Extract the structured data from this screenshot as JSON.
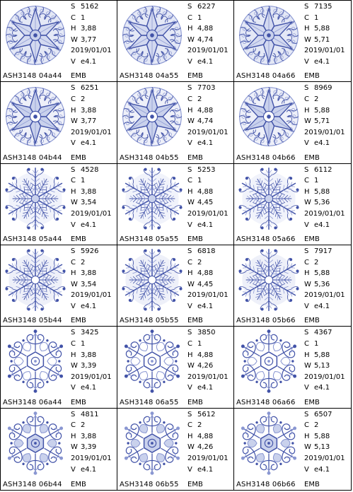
{
  "labels": {
    "stitches": "S",
    "colors": "C",
    "height": "H",
    "width": "W",
    "version": "V"
  },
  "colors": {
    "thread_light": "#c9d1ec",
    "thread_mid": "#8a97d2",
    "thread_dark": "#4253a8",
    "grid": "#000000"
  },
  "designs": [
    {
      "file": "ASH3148  04a44",
      "stitches": "5162",
      "colors": "1",
      "height": "3,88",
      "width": "3,77",
      "date": "2019/01/01",
      "version": "e4.1",
      "format": "EMB",
      "style": "star-filigree"
    },
    {
      "file": "ASH3148  04a55",
      "stitches": "6227",
      "colors": "1",
      "height": "4,88",
      "width": "4,74",
      "date": "2019/01/01",
      "version": "e4.1",
      "format": "EMB",
      "style": "star-filigree"
    },
    {
      "file": "ASH3148  04a66",
      "stitches": "7135",
      "colors": "1",
      "height": "5,88",
      "width": "5,71",
      "date": "2019/01/01",
      "version": "e4.1",
      "format": "EMB",
      "style": "star-filigree"
    },
    {
      "file": "ASH3148  04b44",
      "stitches": "6251",
      "colors": "2",
      "height": "3,88",
      "width": "3,77",
      "date": "2019/01/01",
      "version": "e4.1",
      "format": "EMB",
      "style": "star-filigree-two"
    },
    {
      "file": "ASH3148  04b55",
      "stitches": "7703",
      "colors": "2",
      "height": "4,88",
      "width": "4,74",
      "date": "2019/01/01",
      "version": "e4.1",
      "format": "EMB",
      "style": "star-filigree-two"
    },
    {
      "file": "ASH3148  04b66",
      "stitches": "8969",
      "colors": "2",
      "height": "5,88",
      "width": "5,71",
      "date": "2019/01/01",
      "version": "e4.1",
      "format": "EMB",
      "style": "star-filigree-two"
    },
    {
      "file": "ASH3148  05a44",
      "stitches": "4528",
      "colors": "1",
      "height": "3,88",
      "width": "3,54",
      "date": "2019/01/01",
      "version": "e4.1",
      "format": "EMB",
      "style": "feather-flake"
    },
    {
      "file": "ASH3148  05a55",
      "stitches": "5253",
      "colors": "1",
      "height": "4,88",
      "width": "4,45",
      "date": "2019/01/01",
      "version": "e4.1",
      "format": "EMB",
      "style": "feather-flake"
    },
    {
      "file": "ASH3148  05a66",
      "stitches": "6112",
      "colors": "1",
      "height": "5,88",
      "width": "5,36",
      "date": "2019/01/01",
      "version": "e4.1",
      "format": "EMB",
      "style": "feather-flake"
    },
    {
      "file": "ASH3148  05b44",
      "stitches": "5926",
      "colors": "2",
      "height": "3,88",
      "width": "3,54",
      "date": "2019/01/01",
      "version": "e4.1",
      "format": "EMB",
      "style": "feather-flake-two"
    },
    {
      "file": "ASH3148  05b55",
      "stitches": "6818",
      "colors": "2",
      "height": "4,88",
      "width": "4,45",
      "date": "2019/01/01",
      "version": "e4.1",
      "format": "EMB",
      "style": "feather-flake-two"
    },
    {
      "file": "ASH3148  05b66",
      "stitches": "7917",
      "colors": "2",
      "height": "5,88",
      "width": "5,36",
      "date": "2019/01/01",
      "version": "e4.1",
      "format": "EMB",
      "style": "feather-flake-two"
    },
    {
      "file": "ASH3148  06a44",
      "stitches": "3425",
      "colors": "1",
      "height": "3,88",
      "width": "3,39",
      "date": "2019/01/01",
      "version": "e4.1",
      "format": "EMB",
      "style": "lace-hexagon"
    },
    {
      "file": "ASH3148  06a55",
      "stitches": "3850",
      "colors": "1",
      "height": "4,88",
      "width": "4,26",
      "date": "2019/01/01",
      "version": "e4.1",
      "format": "EMB",
      "style": "lace-hexagon"
    },
    {
      "file": "ASH3148  06a66",
      "stitches": "4367",
      "colors": "1",
      "height": "5,88",
      "width": "5,13",
      "date": "2019/01/01",
      "version": "e4.1",
      "format": "EMB",
      "style": "lace-hexagon"
    },
    {
      "file": "ASH3148  06b44",
      "stitches": "4811",
      "colors": "2",
      "height": "3,88",
      "width": "3,39",
      "date": "2019/01/01",
      "version": "e4.1",
      "format": "EMB",
      "style": "lace-hexagon-two"
    },
    {
      "file": "ASH3148  06b55",
      "stitches": "5612",
      "colors": "2",
      "height": "4,88",
      "width": "4,26",
      "date": "2019/01/01",
      "version": "e4.1",
      "format": "EMB",
      "style": "lace-hexagon-two"
    },
    {
      "file": "ASH3148  06b66",
      "stitches": "6507",
      "colors": "2",
      "height": "5,88",
      "width": "5,13",
      "date": "2019/01/01",
      "version": "e4.1",
      "format": "EMB",
      "style": "lace-hexagon-two"
    }
  ]
}
